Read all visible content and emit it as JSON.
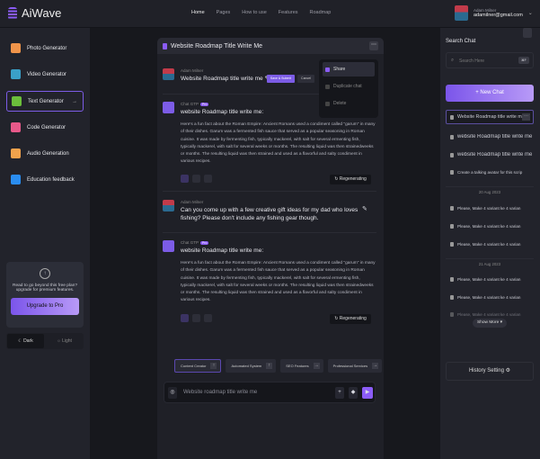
{
  "app": {
    "name": "AiWave"
  },
  "nav": [
    "Home",
    "Pages",
    "How to use",
    "Features",
    "Roadmap"
  ],
  "user": {
    "name": "Adam Milner",
    "email": "adamilner@gmail.com"
  },
  "tools": [
    {
      "label": "Photo Generator",
      "color": "#f0944a"
    },
    {
      "label": "Video Generator",
      "color": "#3aa0c8"
    },
    {
      "label": "Text Generator",
      "color": "#6bbf3b",
      "active": true
    },
    {
      "label": "Code Generator",
      "color": "#e8598a"
    },
    {
      "label": "Audio Generation",
      "color": "#f0a24c"
    },
    {
      "label": "Education feedback",
      "color": "#2a8df0"
    }
  ],
  "upgrade": {
    "text": "Read to go beyond this free plan? upgrade for premium features.",
    "button": "Upgrade to Pro"
  },
  "theme": {
    "dark": "Dark",
    "light": "Light"
  },
  "chat": {
    "title": "Website Roadmap Title Write Me",
    "msg1": {
      "name": "Adam Milner",
      "text": "Website Roadmap title write me",
      "save": "Save & Submit",
      "cancel": "Cancel"
    },
    "reply1": {
      "name": "Chat GTP",
      "badge": "Pro",
      "title": "website Roadmap title write me:",
      "body": "Here's a fun fact about the Roman Empire: Ancient Romans used a condiment called \"garum\" in many of their dishes. Garum was a fermented fish sauce that served as a popular seasoning in Roman cuisine. It was made by fermenting fish, typically mackerel, with salt for several ermenting fish, typically mackerel, with salt for several weeks or months. The resulting liquid was then strainedweeks or months. The resulting liquid was then strained and used as a flavorful and salty condiment in various recipes.",
      "regen": "Regenerating"
    },
    "msg2": {
      "name": "Adam Milner",
      "text": "Can you come up with a few creative gift ideas for my dad who loves fishing? Please don't include any fishing gear though."
    },
    "reply2": {
      "name": "Chat GTP",
      "badge": "Pro",
      "title": "website Roadmap title write me:",
      "body": "Here's a fun fact about the Roman Empire: Ancient Romans used a condiment called \"garum\" in many of their dishes. Garum was a fermented fish sauce that served as a popular seasoning in Roman cuisine. It was made by fermenting fish, typically mackerel, with salt for several ermenting fish, typically mackerel, with salt for several weeks or months. The resulting liquid was then strainedweeks or months. The resulting liquid was then strained and used as a flavorful and salty condiment in various recipes.",
      "regen": "Regenerating"
    },
    "menu": [
      "Share",
      "Duplicate chat",
      "Delete"
    ],
    "chips": [
      "Content Creator",
      "Automated System",
      "SEO Features",
      "Professional Services"
    ],
    "input": {
      "value": "Website roadmap title write me"
    }
  },
  "sidebar": {
    "search_title": "Search Chat",
    "search_placeholder": "Search Here",
    "search_kbd": "⌘F",
    "new_chat": "+ New Chat",
    "recent": [
      "Website Roadmap title write me",
      "website Roadmap title write me",
      "website Roadmap title write me",
      "Create a talking avatar for this scrip"
    ],
    "date1": "20 Aug 2023",
    "group1": [
      "Please, Make 4 variant ke 4 varian",
      "Please, Make 4 variant ke 4 varian",
      "Please, Make 4 variant ke 4 varian"
    ],
    "date2": "21 Aug 2023",
    "group2": [
      "Please, Make 4 variant ke 4 varian",
      "Please, Make 4 variant ke 4 varian",
      "Please, Make 4 variant ke 4 varian"
    ],
    "show_more": "Show More ▾",
    "history": "History Setting ⚙"
  }
}
